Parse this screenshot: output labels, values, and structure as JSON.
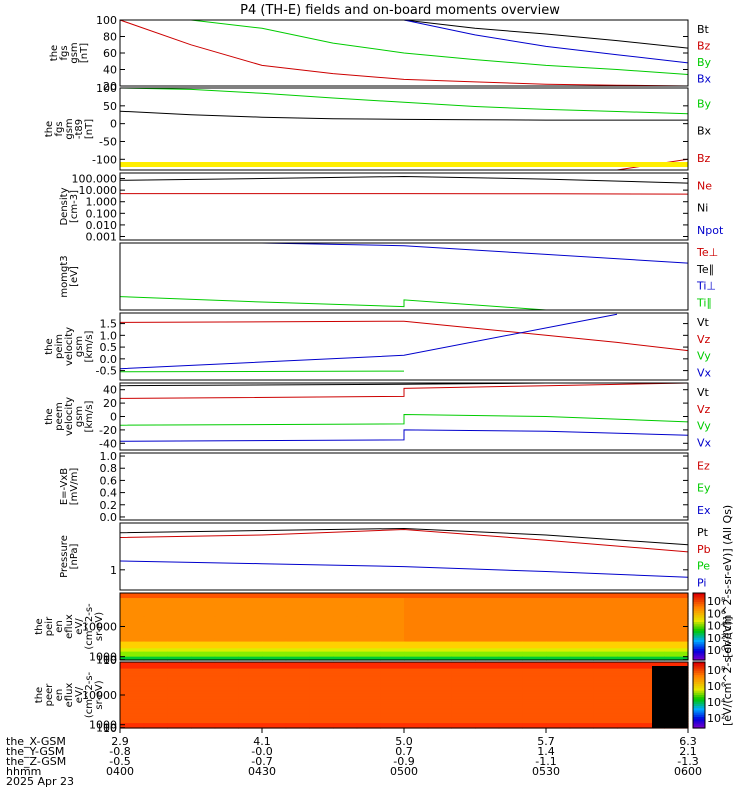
{
  "title": "P4 (TH-E) fields and on-board moments overview",
  "chart_data": [
    {
      "type": "line",
      "ylabel": [
        "the",
        "fgs",
        "gsm",
        "[nT]"
      ],
      "yticks": [
        "100",
        "80",
        "60",
        "40",
        "20"
      ],
      "ylim": [
        20,
        100
      ],
      "legend": [
        {
          "name": "Bt",
          "color": "#000000"
        },
        {
          "name": "Bz",
          "color": "#cc0000"
        },
        {
          "name": "By",
          "color": "#00cc00"
        },
        {
          "name": "Bx",
          "color": "#0000cc"
        }
      ],
      "series": [
        {
          "name": "Bt",
          "color": "#000000",
          "x": [
            "0430",
            "0445",
            "0500",
            "0515",
            "0530",
            "0545",
            "0600"
          ],
          "y": [
            100,
            100,
            100,
            90,
            83,
            75,
            66
          ]
        },
        {
          "name": "Bz",
          "color": "#cc0000",
          "x": [
            "0400",
            "0415",
            "0430",
            "0445",
            "0500",
            "0515",
            "0530",
            "0545",
            "0600"
          ],
          "y": [
            100,
            70,
            45,
            35,
            28,
            25,
            22,
            21,
            20
          ]
        },
        {
          "name": "By",
          "color": "#00cc00",
          "x": [
            "0400",
            "0415",
            "0430",
            "0445",
            "0500",
            "0515",
            "0530",
            "0545",
            "0600"
          ],
          "y": [
            100,
            100,
            90,
            72,
            60,
            52,
            45,
            40,
            34
          ]
        },
        {
          "name": "Bx",
          "color": "#0000cc",
          "x": [
            "0500",
            "0515",
            "0530",
            "0545",
            "0600"
          ],
          "y": [
            100,
            82,
            68,
            58,
            48
          ]
        }
      ]
    },
    {
      "type": "line",
      "ylabel": [
        "the",
        "fgs",
        "gsm",
        "-t89",
        "[nT]"
      ],
      "yticks": [
        "100",
        "50",
        "0",
        "-50",
        "-100"
      ],
      "ylim": [
        -130,
        100
      ],
      "legend": [
        {
          "name": "By",
          "color": "#00cc00"
        },
        {
          "name": "Bx",
          "color": "#000000"
        },
        {
          "name": "Bz",
          "color": "#cc0000"
        }
      ],
      "series": [
        {
          "name": "By",
          "color": "#00cc00",
          "x": [
            "0400",
            "0415",
            "0430",
            "0445",
            "0500",
            "0515",
            "0530",
            "0545",
            "0600"
          ],
          "y": [
            100,
            96,
            85,
            72,
            60,
            48,
            40,
            34,
            28
          ]
        },
        {
          "name": "Bx",
          "color": "#000000",
          "x": [
            "0400",
            "0415",
            "0430",
            "0445",
            "0500",
            "0515",
            "0530",
            "0545",
            "0600"
          ],
          "y": [
            35,
            25,
            18,
            14,
            12,
            11,
            10,
            10,
            10
          ]
        },
        {
          "name": "Bz",
          "color": "#cc0000",
          "x": [
            "0545",
            "0600"
          ],
          "y": [
            -130,
            -100
          ]
        }
      ]
    },
    {
      "type": "line",
      "yscale": "log",
      "ylabel": [
        "Density",
        "[cm-3]"
      ],
      "yticks": [
        "100.000",
        "10.000",
        "1.000",
        "0.100",
        "0.010",
        "0.001"
      ],
      "ylim": [
        0.0005,
        300
      ],
      "legend": [
        {
          "name": "Ne",
          "color": "#cc0000"
        },
        {
          "name": "Ni",
          "color": "#000000"
        },
        {
          "name": "Npot",
          "color": "#0000cc"
        }
      ],
      "series": [
        {
          "name": "Ni",
          "color": "#000000",
          "x": [
            "0400",
            "0430",
            "0500",
            "0530",
            "0600"
          ],
          "y": [
            70,
            100,
            150,
            90,
            40
          ]
        },
        {
          "name": "Ne",
          "color": "#cc0000",
          "x": [
            "0400",
            "0430",
            "0500",
            "0530",
            "0600"
          ],
          "y": [
            5,
            5,
            5,
            4.8,
            4.5
          ]
        }
      ]
    },
    {
      "type": "line",
      "ylabel": [
        "momgt3",
        "[eV]"
      ],
      "yticks": [],
      "legend": [
        {
          "name": "Te⊥",
          "color": "#cc0000"
        },
        {
          "name": "Te∥",
          "color": "#000000"
        },
        {
          "name": "Ti⊥",
          "color": "#0000cc"
        },
        {
          "name": "Ti∥",
          "color": "#00cc00"
        }
      ],
      "series": [
        {
          "name": "Ti⊥",
          "color": "#0000cc",
          "x": [
            "0430",
            "0500",
            "0530",
            "0600"
          ],
          "y": [
            1.0,
            0.96,
            0.83,
            0.7
          ]
        },
        {
          "name": "Ti∥",
          "color": "#00cc00",
          "x": [
            "0400",
            "0430",
            "0500",
            "0500",
            "0530",
            "0600"
          ],
          "y": [
            0.2,
            0.12,
            0.05,
            0.15,
            0.0,
            -0.05
          ]
        }
      ]
    },
    {
      "type": "line",
      "ylabel": [
        "the",
        "peim",
        "velocity",
        "gsm",
        "[km/s]"
      ],
      "yticks": [
        "1.5",
        "1.0",
        "0.5",
        "0.0",
        "-0.5"
      ],
      "ylim": [
        -0.9,
        1.95
      ],
      "legend": [
        {
          "name": "Vt",
          "color": "#000000"
        },
        {
          "name": "Vz",
          "color": "#cc0000"
        },
        {
          "name": "Vy",
          "color": "#00cc00"
        },
        {
          "name": "Vx",
          "color": "#0000cc"
        }
      ],
      "series": [
        {
          "name": "Vz",
          "color": "#cc0000",
          "x": [
            "0400",
            "0500",
            "0515",
            "0530",
            "0545",
            "0600"
          ],
          "y": [
            1.55,
            1.6,
            1.3,
            1.0,
            0.7,
            0.35
          ]
        },
        {
          "name": "Vy",
          "color": "#00cc00",
          "x": [
            "0400",
            "0500"
          ],
          "y": [
            -0.55,
            -0.52
          ]
        },
        {
          "name": "Vx",
          "color": "#0000cc",
          "x": [
            "0400",
            "0500",
            "0545"
          ],
          "y": [
            -0.42,
            0.15,
            1.9
          ]
        }
      ]
    },
    {
      "type": "line",
      "ylabel": [
        "the",
        "peem",
        "velocity",
        "gsm",
        "[km/s]"
      ],
      "yticks": [
        "40",
        "20",
        "0",
        "-20",
        "-40"
      ],
      "ylim": [
        -50,
        50
      ],
      "legend": [
        {
          "name": "Vt",
          "color": "#000000"
        },
        {
          "name": "Vz",
          "color": "#cc0000"
        },
        {
          "name": "Vy",
          "color": "#00cc00"
        },
        {
          "name": "Vx",
          "color": "#0000cc"
        }
      ],
      "series": [
        {
          "name": "Vt",
          "color": "#000000",
          "x": [
            "0400",
            "0500",
            "0530",
            "0600"
          ],
          "y": [
            46,
            48,
            50,
            52
          ]
        },
        {
          "name": "Vz",
          "color": "#cc0000",
          "x": [
            "0400",
            "0500",
            "0500",
            "0530",
            "0600"
          ],
          "y": [
            27,
            30,
            42,
            46,
            50
          ]
        },
        {
          "name": "Vy",
          "color": "#00cc00",
          "x": [
            "0400",
            "0500",
            "0500",
            "0530",
            "0600"
          ],
          "y": [
            -13,
            -11,
            3,
            0,
            -8
          ]
        },
        {
          "name": "Vx",
          "color": "#0000cc",
          "x": [
            "0400",
            "0500",
            "0500",
            "0530",
            "0600"
          ],
          "y": [
            -37,
            -35,
            -20,
            -22,
            -28
          ]
        }
      ]
    },
    {
      "type": "line",
      "ylabel": [
        "E=-VxB",
        "[mV/m]"
      ],
      "yticks": [
        "1.0",
        "0.8",
        "0.6",
        "0.4",
        "0.2",
        "0.0"
      ],
      "ylim": [
        -0.05,
        1.05
      ],
      "legend": [
        {
          "name": "Ez",
          "color": "#cc0000"
        },
        {
          "name": "Ey",
          "color": "#00cc00"
        },
        {
          "name": "Ex",
          "color": "#0000cc"
        }
      ],
      "series": []
    },
    {
      "type": "line",
      "yscale": "log",
      "ylabel": [
        "Pressure",
        "[nPa]"
      ],
      "yticks": [
        "1"
      ],
      "ylim": [
        0.55,
        4
      ],
      "legend": [
        {
          "name": "Pt",
          "color": "#000000"
        },
        {
          "name": "Pb",
          "color": "#cc0000"
        },
        {
          "name": "Pe",
          "color": "#00cc00"
        },
        {
          "name": "Pi",
          "color": "#0000cc"
        }
      ],
      "series": [
        {
          "name": "Pt",
          "color": "#000000",
          "x": [
            "0400",
            "0430",
            "0500",
            "0530",
            "0600"
          ],
          "y": [
            3.0,
            3.2,
            3.4,
            2.8,
            2.1
          ]
        },
        {
          "name": "Pb",
          "color": "#cc0000",
          "x": [
            "0400",
            "0430",
            "0500",
            "0530",
            "0600"
          ],
          "y": [
            2.6,
            2.8,
            3.3,
            2.4,
            1.7
          ]
        },
        {
          "name": "Pi",
          "color": "#0000cc",
          "x": [
            "0400",
            "0430",
            "0500",
            "0530",
            "0600"
          ],
          "y": [
            1.3,
            1.2,
            1.1,
            0.95,
            0.8
          ]
        }
      ]
    },
    {
      "type": "heatmap",
      "ylabel": [
        "the",
        "peir",
        "en",
        "eflux",
        "eV/",
        "(cm^2-s-",
        "sr-eV)"
      ],
      "yticks": [
        "10000",
        "1000",
        "100",
        "10"
      ],
      "ylim": [
        5,
        20000
      ],
      "colorbar": {
        "ticks": [
          "10⁸",
          "10⁶",
          "10⁴",
          "10²",
          "10⁰"
        ],
        "label": "[eV/(cm^2-s-sr-eV)] (All Qs)"
      }
    },
    {
      "type": "heatmap",
      "ylabel": [
        "the",
        "peer",
        "en",
        "eflux",
        "eV/",
        "(cm^2-s-",
        "sr-eV)"
      ],
      "yticks": [
        "10000",
        "1000",
        "100",
        "10"
      ],
      "ylim": [
        5,
        20000
      ],
      "colorbar": {
        "ticks": [
          "10⁸",
          "10⁶",
          "10⁴",
          "10²"
        ],
        "label": "[eV/(cm^2-s-sr-eV)]"
      }
    }
  ],
  "xaxis": {
    "row_labels": [
      "the_X-GSM",
      "the_Y-GSM",
      "the_Z-GSM",
      "hhmm",
      "2025 Apr 23"
    ],
    "columns": [
      {
        "X": "2.9",
        "Y": "-0.8",
        "Z": "-0.5",
        "hhmm": "0400"
      },
      {
        "X": "4.1",
        "Y": "-0.0",
        "Z": "-0.7",
        "hhmm": "0430"
      },
      {
        "X": "5.0",
        "Y": "0.7",
        "Z": "-0.9",
        "hhmm": "0500"
      },
      {
        "X": "5.7",
        "Y": "1.4",
        "Z": "-1.1",
        "hhmm": "0530"
      },
      {
        "X": "6.3",
        "Y": "2.1",
        "Z": "-1.3",
        "hhmm": "0600"
      }
    ]
  }
}
